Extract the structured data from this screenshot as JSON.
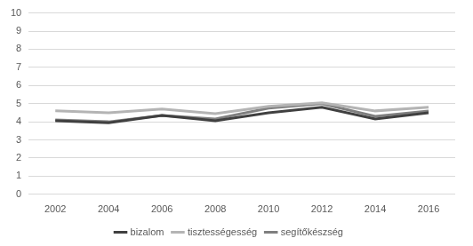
{
  "chart_data": {
    "type": "line",
    "categories": [
      "2002",
      "2004",
      "2006",
      "2008",
      "2010",
      "2012",
      "2014",
      "2016"
    ],
    "series": [
      {
        "name": "bizalom",
        "color": "#404040",
        "values": [
          4.05,
          3.95,
          4.35,
          4.05,
          4.5,
          4.8,
          4.15,
          4.5
        ]
      },
      {
        "name": "tisztességesség",
        "color": "#b4b4b4",
        "values": [
          4.6,
          4.5,
          4.7,
          4.45,
          4.85,
          5.05,
          4.6,
          4.8
        ]
      },
      {
        "name": "segítőkészség",
        "color": "#7f7f7f",
        "values": [
          4.1,
          4.0,
          4.35,
          4.15,
          4.75,
          5.0,
          4.3,
          4.6
        ]
      }
    ],
    "ylim": [
      0,
      10
    ],
    "yticks": [
      0,
      1,
      2,
      3,
      4,
      5,
      6,
      7,
      8,
      9,
      10
    ],
    "grid": true,
    "legend": "bottom"
  }
}
